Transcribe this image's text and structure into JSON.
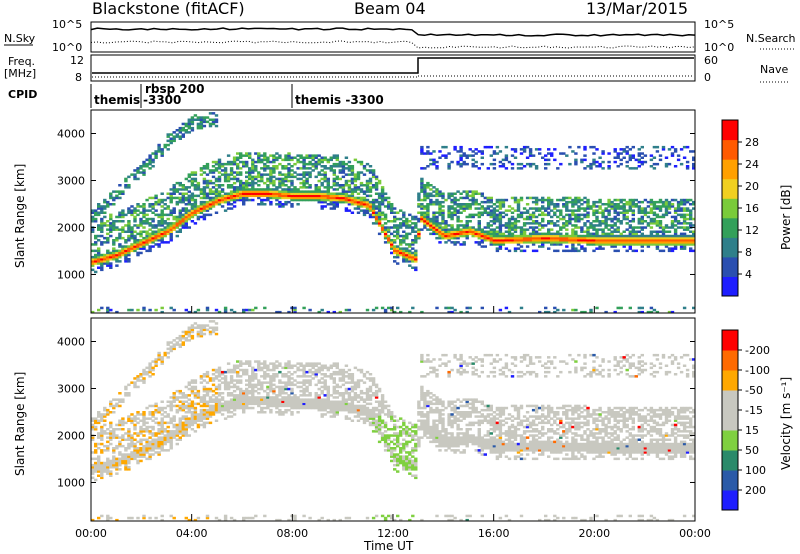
{
  "header": {
    "radar": "Blackstone (fitACF)",
    "beam": "Beam 04",
    "date": "13/Mar/2015"
  },
  "params": {
    "nsky_label": "N.Sky",
    "nsearch_label": "N.Search",
    "freq_label": "Freq.",
    "freq_unit": "[MHz]",
    "nave_label": "Nave",
    "cpid_label": "CPID",
    "left_ticks_top": [
      "10^5",
      "10^0"
    ],
    "right_ticks_top": [
      "10^5",
      "10^0"
    ],
    "left_ticks_freq": [
      "12",
      "8"
    ],
    "right_ticks_nave": [
      "60",
      "0"
    ],
    "cpid_segments": [
      {
        "label": "themis",
        "start_hour": 0.0
      },
      {
        "label": "rbsp 200",
        "label2": "-3300",
        "start_hour": 1.75
      },
      {
        "label": "themis -3300",
        "start_hour": 8.0
      }
    ]
  },
  "colors": {
    "power_scale": [
      "#1e1eff",
      "#2a4fb0",
      "#2f7f8a",
      "#33a05a",
      "#7acb3a",
      "#f0d020",
      "#ffa000",
      "#ff5a00",
      "#ff0000"
    ],
    "velocity_scale": [
      "#ff0000",
      "#ff6a00",
      "#ffa800",
      "#c8c8c0",
      "#c8c8c0",
      "#7fd040",
      "#2a8a6a",
      "#2a5aa8",
      "#1e1eff"
    ]
  },
  "chart_data": [
    {
      "type": "heatmap",
      "title": "Power",
      "ylabel": "Slant Range [km]",
      "xlabel": "",
      "ylim": [
        180,
        4500
      ],
      "xlim": [
        0,
        24
      ],
      "yticks": [
        "1000",
        "2000",
        "3000",
        "4000"
      ],
      "colorbar_label": "Power [dB]",
      "colorbar_ticks": [
        "4",
        "8",
        "12",
        "16",
        "20",
        "24",
        "28"
      ],
      "colorbar_range": [
        0,
        30
      ],
      "bands": [
        {
          "name": "lower",
          "points": [
            [
              0,
              1250
            ],
            [
              1,
              1400
            ],
            [
              2,
              1650
            ],
            [
              3,
              1900
            ],
            [
              4,
              2300
            ],
            [
              5,
              2550
            ],
            [
              6,
              2700
            ],
            [
              7,
              2700
            ],
            [
              8,
              2650
            ],
            [
              9,
              2650
            ],
            [
              10,
              2600
            ],
            [
              11,
              2450
            ],
            [
              12,
              1500
            ],
            [
              12.9,
              1300
            ],
            [
              13,
              2200
            ],
            [
              14,
              1800
            ],
            [
              15,
              1900
            ],
            [
              16,
              1700
            ],
            [
              18,
              1750
            ],
            [
              20,
              1700
            ],
            [
              22,
              1700
            ],
            [
              24,
              1700
            ]
          ]
        },
        {
          "name": "upper",
          "points": [
            [
              0,
              2200
            ],
            [
              1,
              2700
            ],
            [
              2,
              3200
            ],
            [
              3,
              3800
            ],
            [
              4,
              4200
            ],
            [
              5,
              4300
            ]
          ]
        }
      ]
    },
    {
      "type": "heatmap",
      "title": "Velocity",
      "ylabel": "Slant Range [km]",
      "xlabel": "Time UT",
      "ylim": [
        180,
        4500
      ],
      "xlim": [
        0,
        24
      ],
      "yticks": [
        "1000",
        "2000",
        "3000",
        "4000"
      ],
      "xticks": [
        "00:00",
        "04:00",
        "08:00",
        "12:00",
        "16:00",
        "20:00",
        "00:00"
      ],
      "colorbar_label": "Velocity [m s⁻¹]",
      "colorbar_ticks": [
        "200",
        "100",
        "50",
        "15",
        "-15",
        "-50",
        "-100",
        "-200"
      ],
      "colorbar_range": [
        -250,
        250
      ]
    }
  ]
}
